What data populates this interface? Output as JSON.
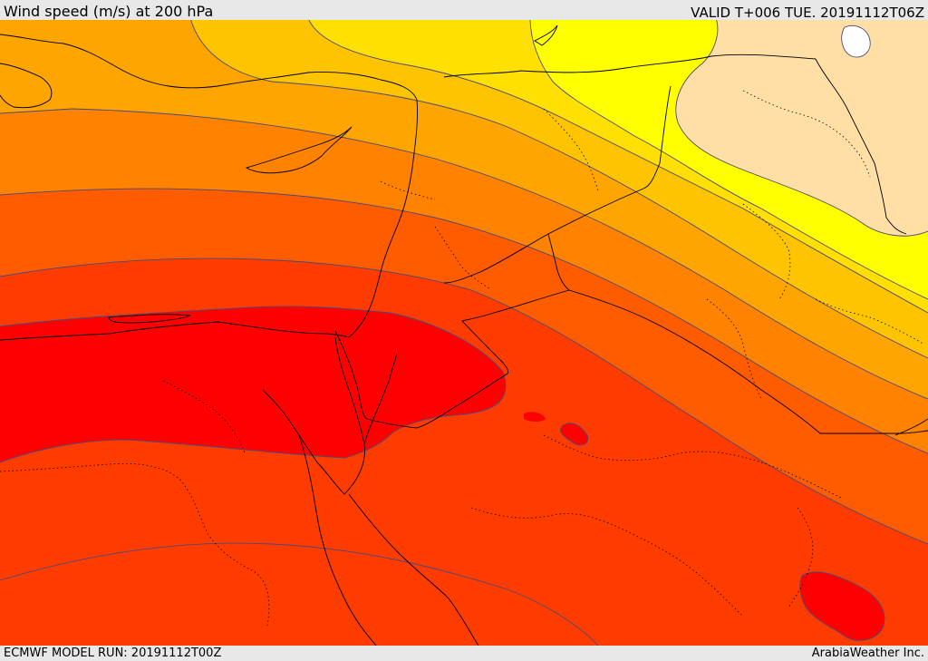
{
  "header": {
    "title": "Wind speed (m/s) at 200 hPa",
    "valid": "VALID T+006 TUE. 20191112T06Z"
  },
  "footer": {
    "model_run": "ECMWF MODEL RUN: 20191112T00Z",
    "credit": "ArabiaWeather Inc."
  },
  "map": {
    "variable": "wind speed",
    "level_hpa": 200,
    "units": "m/s",
    "shading_colors": [
      "#ffffff",
      "#ffdfa6",
      "#ffff00",
      "#ffe000",
      "#ffc400",
      "#ffa500",
      "#ff8200",
      "#ff5c00",
      "#ff3c00",
      "#ff2200",
      "#ff0000"
    ]
  }
}
